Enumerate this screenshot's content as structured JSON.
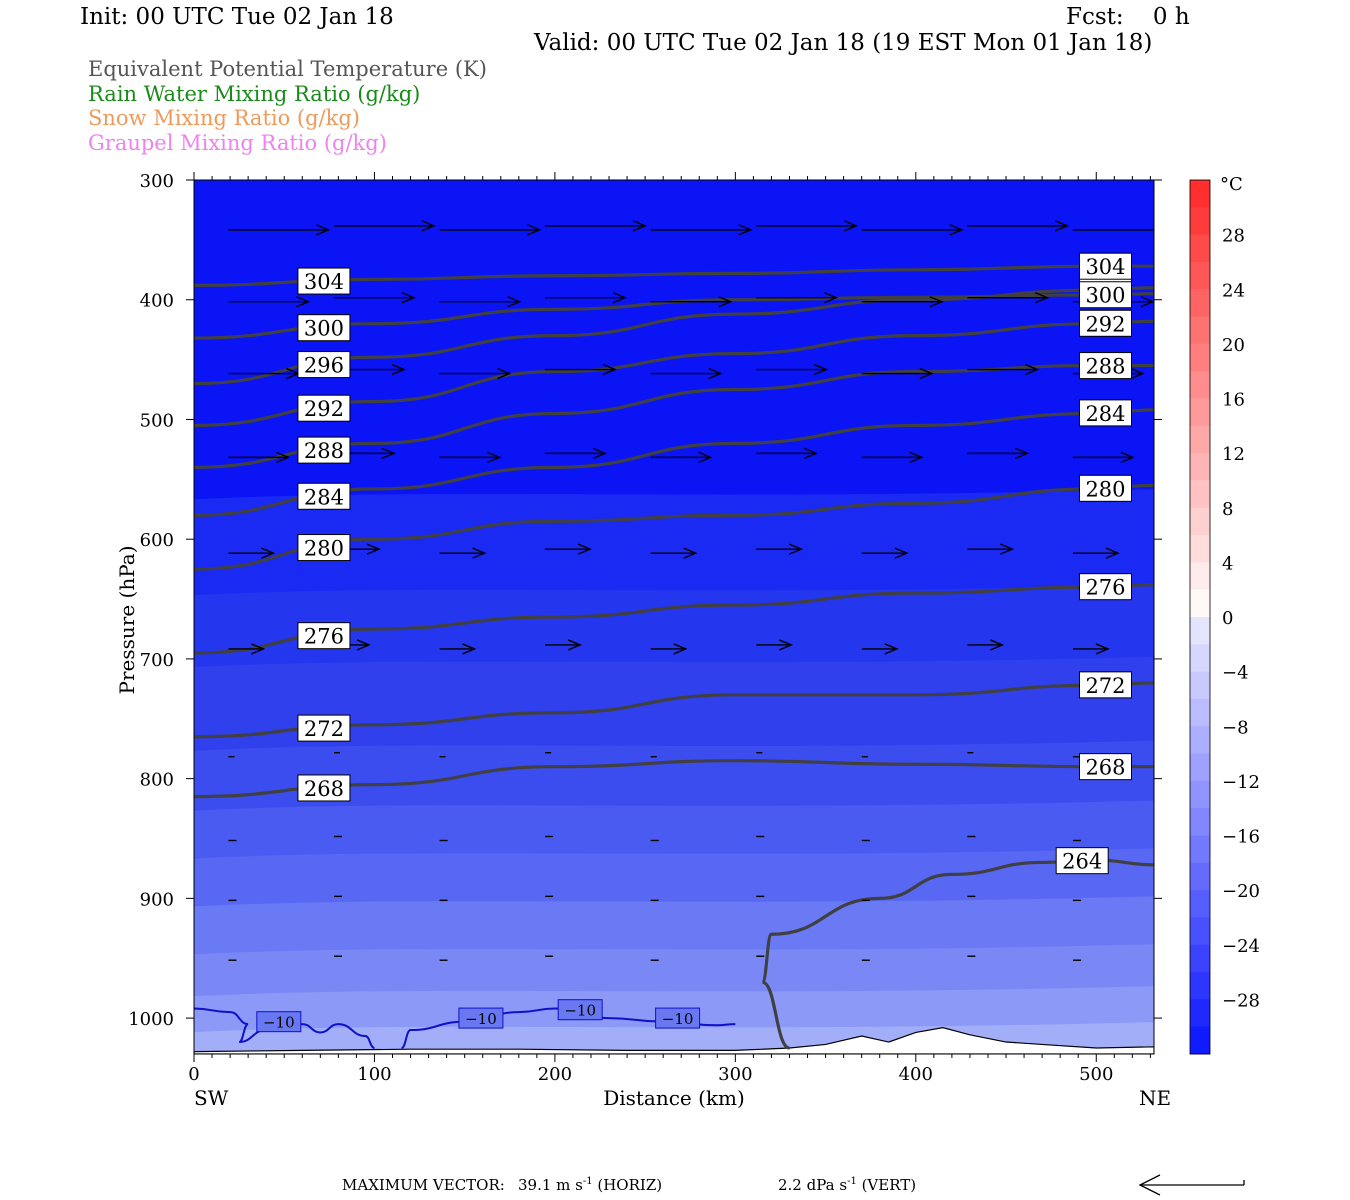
{
  "header": {
    "init": "Init: 00 UTC Tue 02 Jan 18",
    "fcst": "Fcst:    0 h",
    "valid": "Valid: 00 UTC Tue 02 Jan 18 (19 EST Mon 01 Jan 18)"
  },
  "titles": [
    {
      "text": "Equivalent Potential Temperature (K)",
      "color": "#555555"
    },
    {
      "text": "Rain Water Mixing Ratio (g/kg)",
      "color": "#1a8a1a"
    },
    {
      "text": "Snow Mixing Ratio (g/kg)",
      "color": "#ee9a5c"
    },
    {
      "text": "Graupel Mixing Ratio (g/kg)",
      "color": "#ee82ee"
    }
  ],
  "axes": {
    "ylabel": "Pressure (hPa)",
    "xlabel": "Distance (km)",
    "left_end": "SW",
    "right_end": "NE",
    "colorbar_unit": "°C"
  },
  "footer": {
    "max_vector_label": "MAXIMUM VECTOR:",
    "horiz": "39.1 m s",
    "horiz_suffix": " (HORIZ)",
    "vert": "2.2 dPa s",
    "vert_suffix": " (VERT)",
    "exponent": "-1"
  },
  "chart_data": {
    "type": "contour",
    "title": "Equivalent Potential Temperature (K)",
    "xlabel": "Distance (km)",
    "ylabel": "Pressure (hPa)",
    "xlim": [
      0,
      532
    ],
    "ylim": [
      1030,
      300
    ],
    "xticks": [
      0,
      100,
      200,
      300,
      400,
      500
    ],
    "yticks": [
      300,
      400,
      500,
      600,
      700,
      800,
      900,
      1000
    ],
    "colorbar": {
      "unit": "°C",
      "tick_labels": [
        "28",
        "24",
        "20",
        "16",
        "12",
        "8",
        "4",
        "0",
        "−4",
        "−8",
        "−12",
        "−16",
        "−20",
        "−24",
        "−28"
      ],
      "tick_values": [
        28,
        24,
        20,
        16,
        12,
        8,
        4,
        0,
        -4,
        -8,
        -12,
        -16,
        -20,
        -24,
        -28
      ],
      "range": [
        -32,
        32
      ]
    },
    "theta_e_contours": [
      {
        "label": "264",
        "points": [
          [
            330,
            1025
          ],
          [
            315,
            970
          ],
          [
            320,
            930
          ],
          [
            380,
            900
          ],
          [
            420,
            880
          ],
          [
            470,
            870
          ],
          [
            500,
            868
          ],
          [
            532,
            872
          ]
        ]
      },
      {
        "label": "268",
        "points": [
          [
            0,
            815
          ],
          [
            100,
            805
          ],
          [
            200,
            790
          ],
          [
            300,
            785
          ],
          [
            400,
            788
          ],
          [
            500,
            790
          ],
          [
            532,
            790
          ]
        ]
      },
      {
        "label": "272",
        "points": [
          [
            0,
            765
          ],
          [
            100,
            755
          ],
          [
            200,
            745
          ],
          [
            300,
            730
          ],
          [
            400,
            730
          ],
          [
            500,
            722
          ],
          [
            532,
            720
          ]
        ]
      },
      {
        "label": "276",
        "points": [
          [
            0,
            695
          ],
          [
            100,
            675
          ],
          [
            200,
            665
          ],
          [
            300,
            655
          ],
          [
            400,
            645
          ],
          [
            500,
            640
          ],
          [
            532,
            638
          ]
        ]
      },
      {
        "label": "280",
        "points": [
          [
            0,
            625
          ],
          [
            100,
            600
          ],
          [
            200,
            585
          ],
          [
            300,
            580
          ],
          [
            400,
            570
          ],
          [
            500,
            558
          ],
          [
            532,
            555
          ]
        ]
      },
      {
        "label": "284",
        "points": [
          [
            0,
            580
          ],
          [
            100,
            558
          ],
          [
            200,
            540
          ],
          [
            300,
            520
          ],
          [
            400,
            505
          ],
          [
            500,
            495
          ],
          [
            532,
            492
          ]
        ]
      },
      {
        "label": "288",
        "points": [
          [
            0,
            540
          ],
          [
            100,
            520
          ],
          [
            200,
            495
          ],
          [
            300,
            475
          ],
          [
            400,
            460
          ],
          [
            500,
            455
          ],
          [
            532,
            455
          ]
        ]
      },
      {
        "label": "292",
        "points": [
          [
            0,
            505
          ],
          [
            100,
            485
          ],
          [
            200,
            460
          ],
          [
            300,
            445
          ],
          [
            400,
            430
          ],
          [
            500,
            420
          ],
          [
            532,
            418
          ]
        ]
      },
      {
        "label": "296",
        "points": [
          [
            0,
            470
          ],
          [
            100,
            448
          ],
          [
            200,
            430
          ],
          [
            300,
            412
          ],
          [
            400,
            400
          ],
          [
            500,
            392
          ],
          [
            532,
            390
          ]
        ]
      },
      {
        "label": "300",
        "points": [
          [
            0,
            432
          ],
          [
            100,
            420
          ],
          [
            200,
            408
          ],
          [
            300,
            400
          ],
          [
            400,
            398
          ],
          [
            500,
            396
          ],
          [
            532,
            395
          ]
        ]
      },
      {
        "label": "304",
        "points": [
          [
            0,
            388
          ],
          [
            100,
            383
          ],
          [
            200,
            380
          ],
          [
            300,
            378
          ],
          [
            400,
            375
          ],
          [
            500,
            372
          ],
          [
            532,
            372
          ]
        ]
      }
    ],
    "temperature_contour": {
      "label": "−10",
      "value_c": -10
    }
  }
}
